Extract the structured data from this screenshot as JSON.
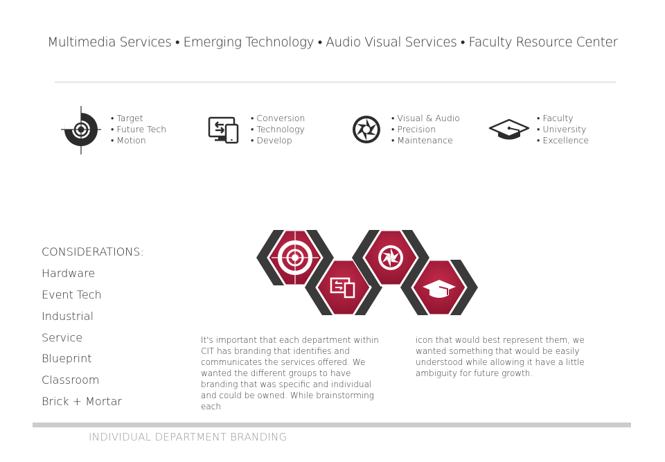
{
  "header": {
    "nav": "Multimedia Services • Emerging Technology • Audio Visual Services • Faculty Resource Center"
  },
  "departments": [
    {
      "icon": "target-icon",
      "items": [
        "• Target",
        "• Future Tech",
        "• Motion"
      ]
    },
    {
      "icon": "devices-icon",
      "items": [
        "• Conversion",
        "• Technology",
        "• Develop"
      ]
    },
    {
      "icon": "aperture-icon",
      "items": [
        "• Visual & Audio",
        "• Precision",
        "• Maintenance"
      ]
    },
    {
      "icon": "graduation-cap-icon",
      "items": [
        "• Faculty",
        "• University",
        "• Excellence"
      ]
    }
  ],
  "considerations": {
    "heading": "CONSIDERATIONS:",
    "items": [
      "Hardware",
      "Event Tech",
      "Industrial",
      "Service",
      "Blueprint",
      "Classroom",
      "Brick + Mortar"
    ]
  },
  "description": {
    "col1": "It's important that each department within CIT has branding that identifies and communicates the services offered. We wanted the different groups to have branding that was specific and individual and could be owned. While brainstorming each",
    "col2": "icon that would best represent them, we wanted something that would be easily understood while allowing it have a little ambiguity for future growth."
  },
  "footer": {
    "title": "INDIVIDUAL DEPARTMENT BRANDING"
  },
  "colors": {
    "accent": "#a61c3c",
    "dark": "#3a3a3a",
    "text": "#333333",
    "divider": "#cfcfcf"
  }
}
